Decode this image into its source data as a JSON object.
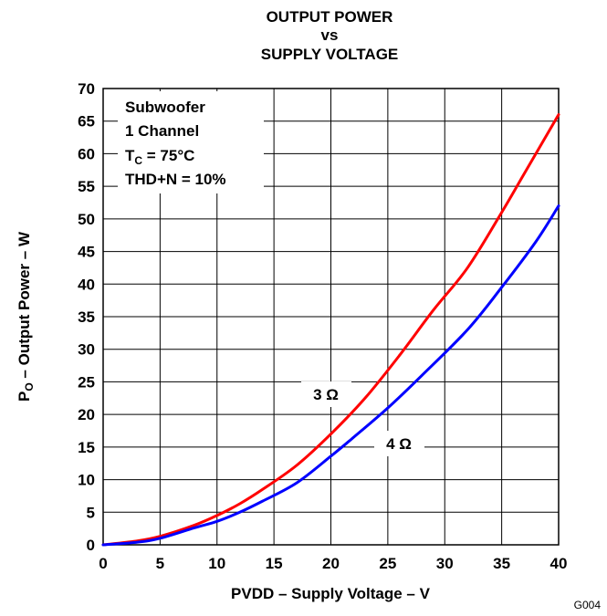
{
  "chart_data": {
    "type": "line",
    "title_lines": [
      "OUTPUT POWER",
      "vs",
      "SUPPLY VOLTAGE"
    ],
    "xlabel": "PVDD – Supply Voltage – V",
    "ylabel_prefix": "P",
    "ylabel_sub": "O",
    "ylabel_rest": " – Output Power – W",
    "xlim": [
      0,
      40
    ],
    "ylim": [
      0,
      70
    ],
    "x_ticks": [
      "0",
      "5",
      "10",
      "15",
      "20",
      "25",
      "30",
      "35",
      "40"
    ],
    "y_ticks": [
      "0",
      "5",
      "10",
      "15",
      "20",
      "25",
      "30",
      "35",
      "40",
      "45",
      "50",
      "55",
      "60",
      "65",
      "70"
    ],
    "grid": true,
    "annotations": {
      "line1": "Subwoofer",
      "line2": "1 Channel",
      "tc_prefix": "T",
      "tc_sub": "C",
      "tc_rest": " = 75°C",
      "line4": "THD+N = 10%"
    },
    "series": [
      {
        "name": "3 Ω",
        "color": "#ff0000",
        "x": [
          0,
          3,
          5,
          8,
          10,
          12,
          14,
          17,
          20,
          23,
          26,
          29,
          32,
          35,
          37,
          40
        ],
        "y": [
          0,
          0.6,
          1.3,
          3.0,
          4.5,
          6.3,
          8.5,
          12.2,
          17.0,
          22.5,
          29.0,
          36.0,
          42.5,
          51.0,
          57.0,
          66.0
        ]
      },
      {
        "name": "4 Ω",
        "color": "#0000ff",
        "x": [
          0,
          3,
          5,
          8,
          10,
          12,
          14,
          17,
          20,
          22,
          25,
          28,
          32,
          35,
          38,
          40
        ],
        "y": [
          0,
          0.4,
          1.0,
          2.6,
          3.6,
          5.0,
          6.7,
          9.5,
          13.6,
          16.5,
          21.0,
          26.0,
          33.0,
          39.5,
          46.5,
          52.0
        ]
      }
    ],
    "series_labels": [
      "3 Ω",
      "4 Ω"
    ],
    "figure_id": "G004"
  }
}
